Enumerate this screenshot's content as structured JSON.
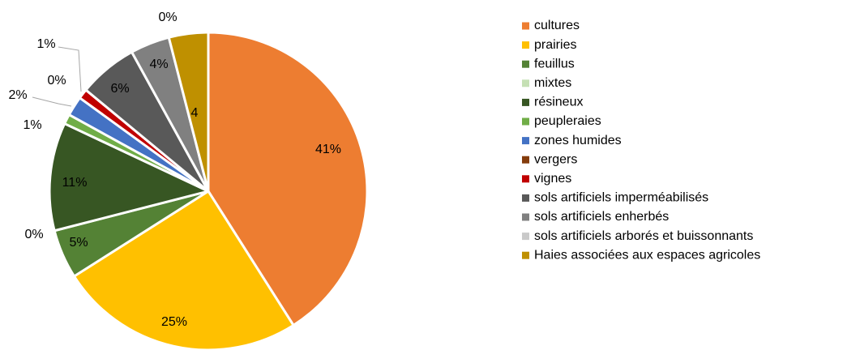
{
  "chart_data": {
    "type": "pie",
    "categories": [
      "cultures",
      "prairies",
      "feuillus",
      "mixtes",
      "résineux",
      "peupleraies",
      "zones humides",
      "vergers",
      "vignes",
      "sols artificiels imperméabilisés",
      "sols artificiels enherbés",
      "sols artificiels arborés et buissonnants",
      "Haies associées aux espaces agricoles"
    ],
    "values": [
      41,
      25,
      5,
      0,
      11,
      1,
      2,
      0,
      1,
      6,
      4,
      0,
      4
    ],
    "value_labels": [
      "41%",
      "25%",
      "5%",
      "0%",
      "11%",
      "1%",
      "2%",
      "0%",
      "1%",
      "6%",
      "4%",
      "0%",
      "4"
    ],
    "colors": [
      "#ED7D31",
      "#FFC000",
      "#548235",
      "#C5E0B4",
      "#375623",
      "#70AD47",
      "#4472C4",
      "#843C0C",
      "#C00000",
      "#595959",
      "#808080",
      "#C9C9C9",
      "#BF9000"
    ],
    "legend": "right"
  }
}
